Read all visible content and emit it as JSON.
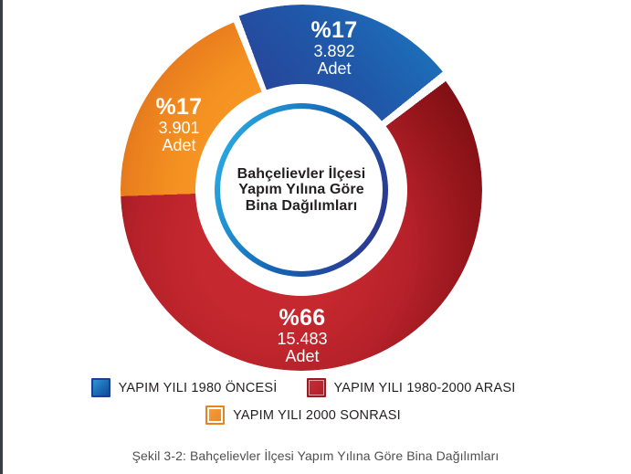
{
  "figure": {
    "caption": "Şekil 3-2: Bahçelievler İlçesi Yapım Yılına Göre Bina Dağılımları"
  },
  "chart_data": {
    "type": "pie",
    "style": "donut",
    "title": "Bahçelievler İlçesi Yapım Yılına Göre Bina Dağılımları",
    "center_label_lines": [
      "Bahçelievler İlçesi",
      "Yapım Yılına Göre",
      "Bina Dağılımları"
    ],
    "legend_position": "bottom",
    "total_percent": 100,
    "slices": [
      {
        "label": "YAPIM YILI 1980 ÖNCESİ",
        "percent": 17,
        "percent_label": "%17",
        "count": 3892,
        "count_label": "3.892",
        "unit_label": "Adet",
        "color": "#1c75bc",
        "color_dark": "#2b3990",
        "exploded": true
      },
      {
        "label": "YAPIM YILI 1980-2000 ARASI",
        "percent": 66,
        "percent_label": "%66",
        "count": 15483,
        "count_label": "15.483",
        "unit_label": "Adet",
        "color": "#be1e2d",
        "color_dark": "#8c1217",
        "exploded": false
      },
      {
        "label": "YAPIM YILI 2000 SONRASI",
        "percent": 17,
        "percent_label": "%17",
        "count": 3901,
        "count_label": "3.901",
        "unit_label": "Adet",
        "color": "#f7941e",
        "color_dark": "#e0761c",
        "exploded": false
      }
    ],
    "ring_border_colors": [
      "#29abe2",
      "#2b3990"
    ],
    "page_edge_bar_color": "#3a3f46"
  }
}
